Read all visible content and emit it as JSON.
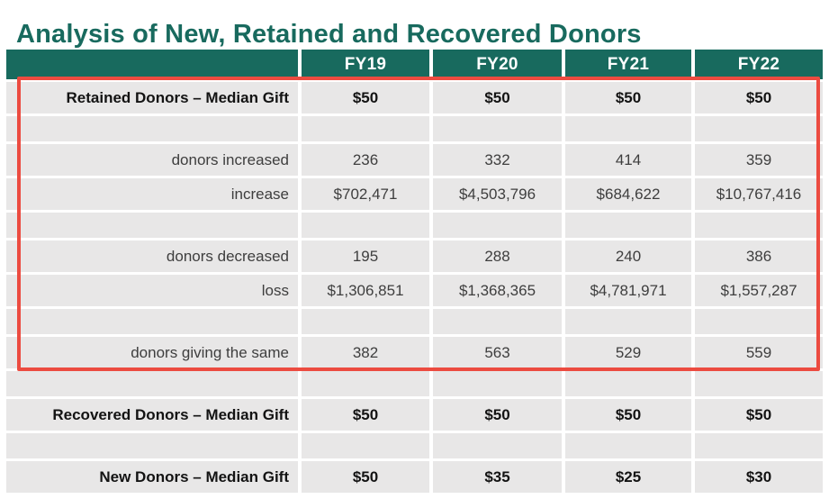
{
  "chart_data": {
    "type": "table",
    "title": "Analysis of New, Retained and Recovered Donors",
    "columns": [
      "",
      "FY19",
      "FY20",
      "FY21",
      "FY22"
    ],
    "rows": [
      {
        "label": "Retained Donors – Median Gift",
        "values": [
          "$50",
          "$50",
          "$50",
          "$50"
        ],
        "style": "bold"
      },
      {
        "label": "",
        "values": [
          "",
          "",
          "",
          ""
        ],
        "style": "empty"
      },
      {
        "label": "donors increased",
        "values": [
          "236",
          "332",
          "414",
          "359"
        ],
        "style": "regular"
      },
      {
        "label": "increase",
        "values": [
          "$702,471",
          "$4,503,796",
          "$684,622",
          "$10,767,416"
        ],
        "style": "regular"
      },
      {
        "label": "",
        "values": [
          "",
          "",
          "",
          ""
        ],
        "style": "empty"
      },
      {
        "label": "donors decreased",
        "values": [
          "195",
          "288",
          "240",
          "386"
        ],
        "style": "regular"
      },
      {
        "label": "loss",
        "values": [
          "$1,306,851",
          "$1,368,365",
          "$4,781,971",
          "$1,557,287"
        ],
        "style": "regular"
      },
      {
        "label": "",
        "values": [
          "",
          "",
          "",
          ""
        ],
        "style": "empty"
      },
      {
        "label": "donors giving the same",
        "values": [
          "382",
          "563",
          "529",
          "559"
        ],
        "style": "regular"
      },
      {
        "label": "",
        "values": [
          "",
          "",
          "",
          ""
        ],
        "style": "empty"
      },
      {
        "label": "Recovered Donors – Median Gift",
        "values": [
          "$50",
          "$50",
          "$50",
          "$50"
        ],
        "style": "bold"
      },
      {
        "label": "",
        "values": [
          "",
          "",
          "",
          ""
        ],
        "style": "empty"
      },
      {
        "label": "New Donors – Median Gift",
        "values": [
          "$50",
          "$35",
          "$25",
          "$30"
        ],
        "style": "bold"
      }
    ],
    "layout_hints": {
      "highlight_box": {
        "rows_covered": "Retained Donors section (rows 1-9)",
        "color": "#EC4B40"
      },
      "header_color": "#186A5E",
      "cell_color": "#E8E7E7",
      "title_color": "#186A5E",
      "label_column_alignment": "right",
      "value_alignment": "center"
    }
  }
}
